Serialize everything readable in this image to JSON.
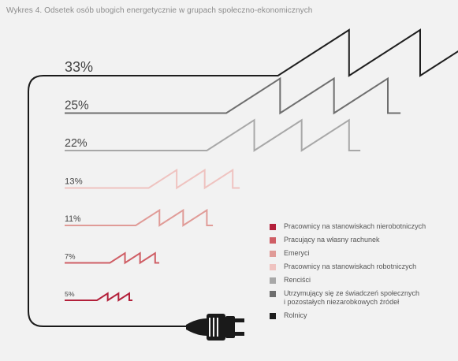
{
  "title": "Wykres 4. Odsetek osób ubogich energetycznie w grupach społeczno-ekonomicznych",
  "chart_data": {
    "type": "bar",
    "title": "Wykres 4. Odsetek osób ubogich energetycznie w grupach społeczno-ekonomicznych",
    "value_suffix": "%",
    "series": [
      {
        "name": "Rolnicy",
        "value": 33,
        "label": "33%",
        "color": "#1e1e1e"
      },
      {
        "name": "Utrzymujący się ze  świadczeń społecznych\ni pozostałych niezarobkowych źródeł",
        "value": 25,
        "label": "25%",
        "color": "#6e6e6e"
      },
      {
        "name": "Renciści",
        "value": 22,
        "label": "22%",
        "color": "#a8a8a8"
      },
      {
        "name": "Pracownicy na stanowiskach robotniczych",
        "value": 13,
        "label": "13%",
        "color": "#efc3c0"
      },
      {
        "name": "Emeryci",
        "value": 11,
        "label": "11%",
        "color": "#e09b97"
      },
      {
        "name": "Pracujący na własny rachunek",
        "value": 7,
        "label": "7%",
        "color": "#cf5e65"
      },
      {
        "name": "Pracownicy na stanowiskach nierobotniczych",
        "value": 5,
        "label": "5%",
        "color": "#b3203a"
      }
    ],
    "legend_order": [
      "Pracownicy na stanowiskach nierobotniczych",
      "Pracujący na własny rachunek",
      "Emeryci",
      "Pracownicy na stanowiskach robotniczych",
      "Renciści",
      "Utrzymujący się ze  świadczeń społecznych\ni pozostałych niezarobkowych źródeł",
      "Rolnicy"
    ],
    "legend_position": "bottom-right",
    "grid": false
  }
}
